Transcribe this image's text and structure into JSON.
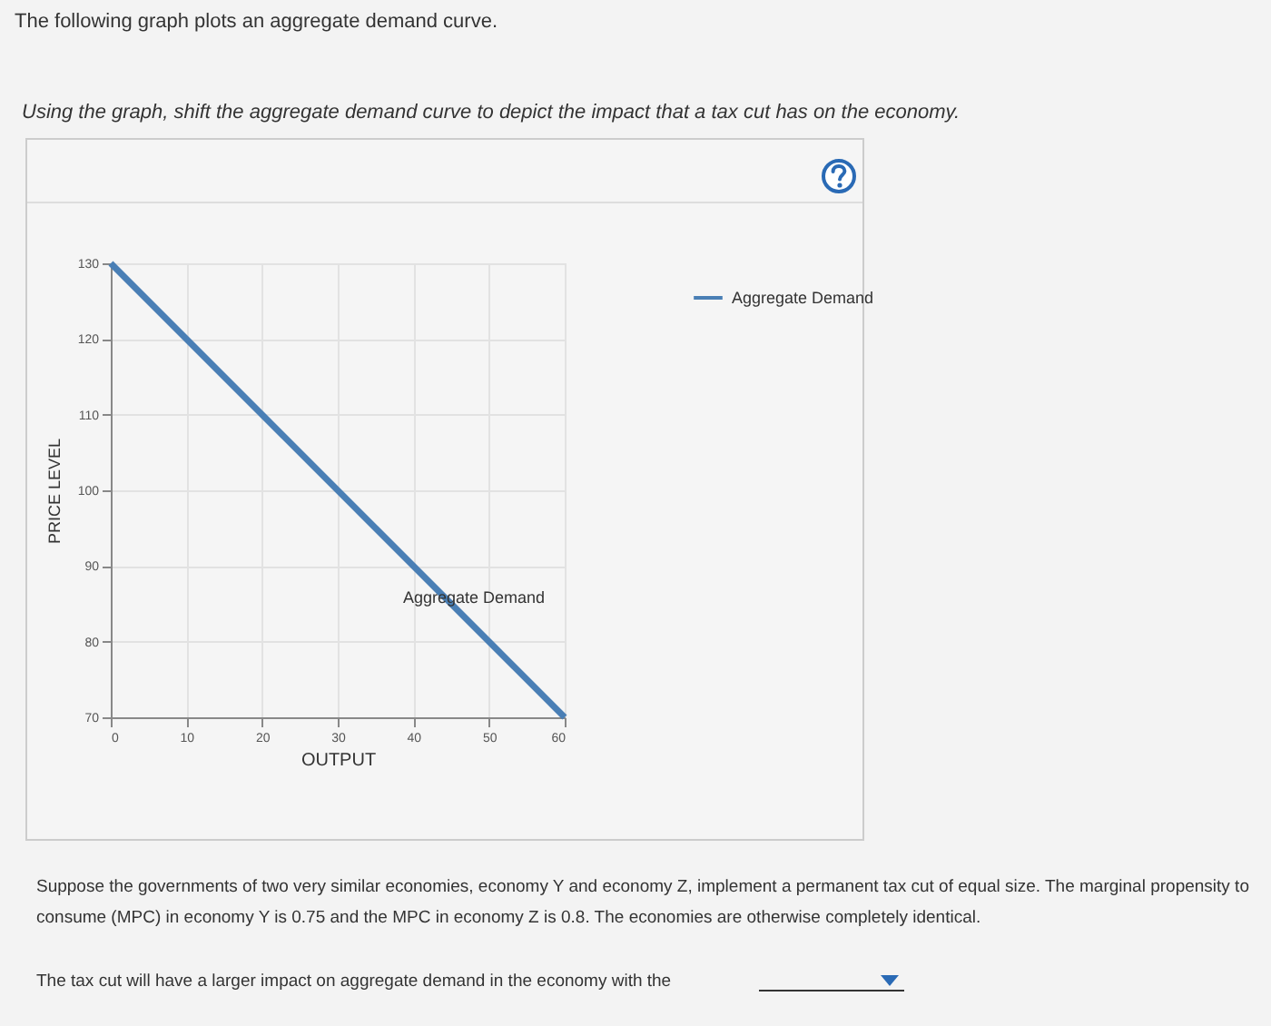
{
  "chart_data": {
    "type": "line",
    "title": "The following graph plots an aggregate demand curve.",
    "subtitle": "Using the graph, shift the aggregate demand curve to depict the impact that a tax cut has on the economy.",
    "xlabel": "OUTPUT",
    "ylabel": "PRICE LEVEL",
    "x": [
      0,
      60
    ],
    "series": [
      {
        "name": "Aggregate Demand",
        "color": "#4a7fb5",
        "values": [
          130,
          70
        ]
      }
    ],
    "xlim": [
      0,
      60
    ],
    "xticks": [
      0,
      10,
      20,
      30,
      40,
      50,
      60
    ],
    "ylim": [
      70,
      130
    ],
    "yticks": [
      70,
      80,
      90,
      100,
      110,
      120,
      130
    ],
    "grid": true,
    "legend": "right",
    "marker": "none",
    "line_style": "solid",
    "annotations": [
      "Aggregate Demand",
      "Suppose the governments of two very similar economies, economy Y and economy Z, implement a permanent tax cut of equal size. The marginal propensity to consume (MPC) in economy Y is 0.75 and the MPC in economy Z is 0.8. The economies are otherwise completely identical.",
      "The tax cut will have a larger impact on aggregate demand in the economy with the"
    ]
  }
}
